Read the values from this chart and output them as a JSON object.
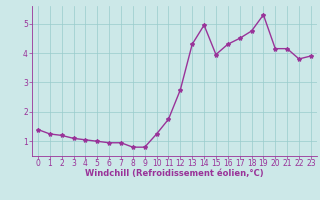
{
  "x": [
    0,
    1,
    2,
    3,
    4,
    5,
    6,
    7,
    8,
    9,
    10,
    11,
    12,
    13,
    14,
    15,
    16,
    17,
    18,
    19,
    20,
    21,
    22,
    23
  ],
  "y": [
    1.4,
    1.25,
    1.2,
    1.1,
    1.05,
    1.0,
    0.95,
    0.95,
    0.8,
    0.8,
    1.25,
    1.75,
    2.75,
    4.3,
    4.95,
    3.95,
    4.3,
    4.5,
    4.75,
    5.3,
    4.15,
    4.15,
    3.8,
    3.9
  ],
  "line_color": "#993399",
  "marker": "*",
  "marker_size": 3,
  "bg_color": "#cce8e8",
  "grid_color": "#99cccc",
  "xlabel": "Windchill (Refroidissement éolien,°C)",
  "xlim": [
    -0.5,
    23.5
  ],
  "ylim": [
    0.5,
    5.6
  ],
  "yticks": [
    1,
    2,
    3,
    4,
    5
  ],
  "xticks": [
    0,
    1,
    2,
    3,
    4,
    5,
    6,
    7,
    8,
    9,
    10,
    11,
    12,
    13,
    14,
    15,
    16,
    17,
    18,
    19,
    20,
    21,
    22,
    23
  ],
  "font_color": "#993399",
  "axis_color": "#993399",
  "line_width": 1.0,
  "tick_fontsize": 5.5,
  "xlabel_fontsize": 6.0
}
